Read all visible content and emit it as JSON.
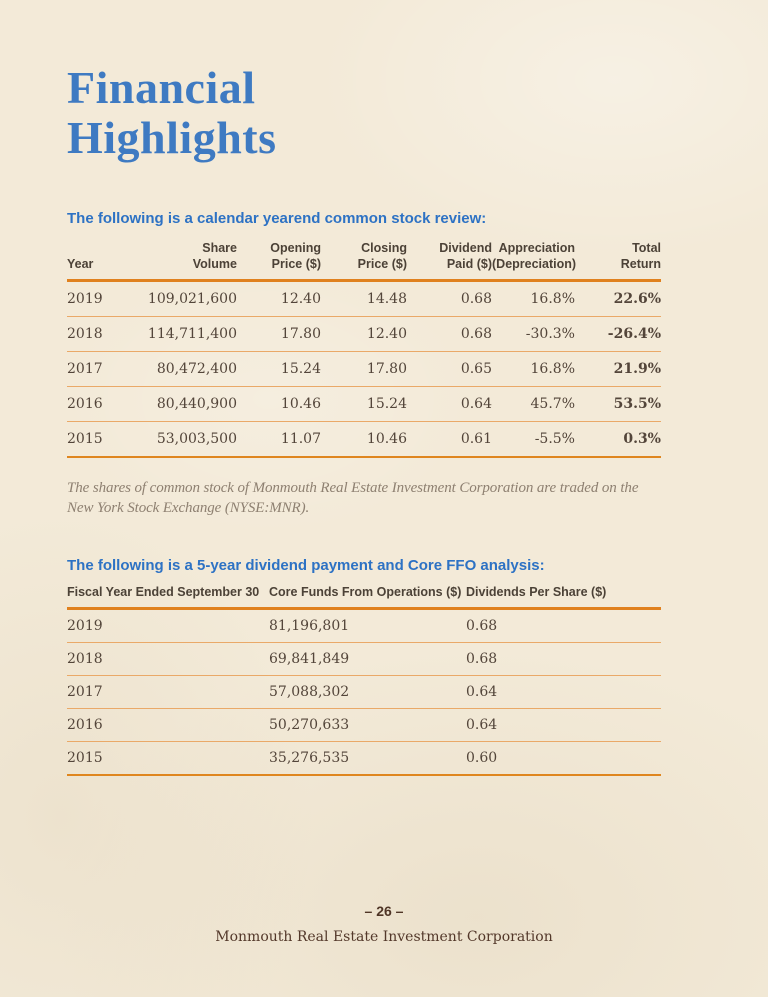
{
  "page": {
    "title_line1": "Financial",
    "title_line2": "Highlights",
    "footer": {
      "page_number": "– 26 –",
      "company": "Monmouth Real Estate Investment Corporation"
    }
  },
  "colors": {
    "background_cream": "#f3ead8",
    "title_blue": "#3e7ac2",
    "heading_blue": "#2d72c4",
    "rule_orange": "#e0811e",
    "row_line_orange": "#eaa968",
    "text_brown": "#53453a",
    "note_gray_brown": "#8e8071"
  },
  "section_stock": {
    "heading": "The following is a calendar yearend common stock review:",
    "table": {
      "columns": [
        "Year",
        "Share\nVolume",
        "Opening\nPrice ($)",
        "Closing\nPrice ($)",
        "Dividend\nPaid ($)",
        "Appreciation\n(Depreciation)",
        "Total\nReturn"
      ],
      "rows": [
        [
          "2019",
          "109,021,600",
          "12.40",
          "14.48",
          "0.68",
          "16.8%",
          "22.6%"
        ],
        [
          "2018",
          "114,711,400",
          "17.80",
          "12.40",
          "0.68",
          "-30.3%",
          "-26.4%"
        ],
        [
          "2017",
          "80,472,400",
          "15.24",
          "17.80",
          "0.65",
          "16.8%",
          "21.9%"
        ],
        [
          "2016",
          "80,440,900",
          "10.46",
          "15.24",
          "0.64",
          "45.7%",
          "53.5%"
        ],
        [
          "2015",
          "53,003,500",
          "11.07",
          "10.46",
          "0.61",
          "-5.5%",
          "0.3%"
        ]
      ]
    },
    "note": "The shares of common stock of Monmouth Real Estate Investment Corporation are traded on the New York Stock Exchange (NYSE:MNR)."
  },
  "section_ffo": {
    "heading": "The following is a 5-year dividend payment and Core FFO analysis:",
    "table": {
      "columns": [
        "Fiscal Year Ended September 30",
        "Core Funds From Operations ($)",
        "Dividends Per Share ($)"
      ],
      "rows": [
        [
          "2019",
          "81,196,801",
          "0.68"
        ],
        [
          "2018",
          "69,841,849",
          "0.68"
        ],
        [
          "2017",
          "57,088,302",
          "0.64"
        ],
        [
          "2016",
          "50,270,633",
          "0.64"
        ],
        [
          "2015",
          "35,276,535",
          "0.60"
        ]
      ]
    }
  }
}
